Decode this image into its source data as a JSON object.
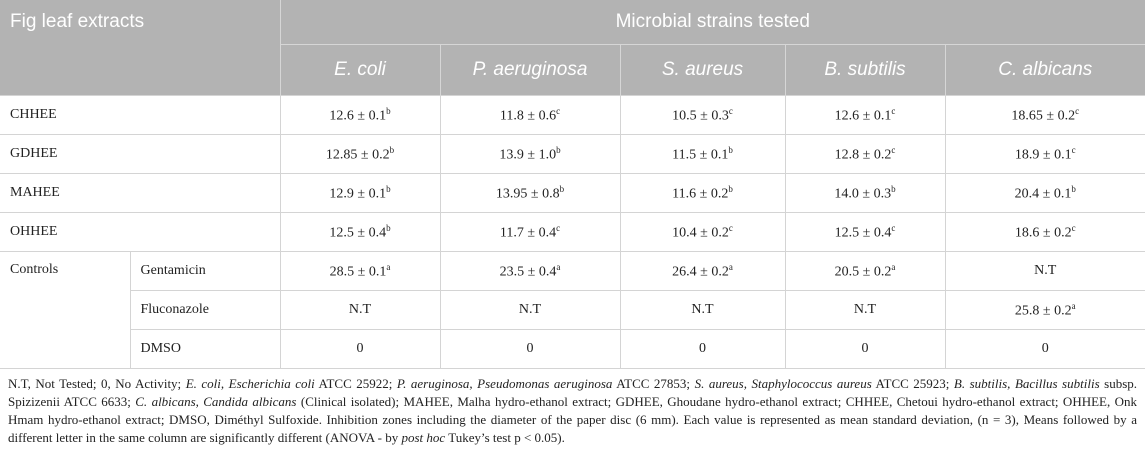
{
  "table": {
    "header": {
      "row_label": "Fig leaf extracts",
      "group": "Microbial strains tested",
      "columns": [
        "E. coli",
        "P. aeruginosa",
        "S. aureus",
        "B. subtilis",
        "C. albicans"
      ]
    },
    "rows": [
      {
        "label": "CHHEE",
        "cells": [
          {
            "text": "12.6 ± 0.1",
            "sup": "b"
          },
          {
            "text": "11.8 ± 0.6",
            "sup": "c"
          },
          {
            "text": "10.5 ± 0.3",
            "sup": "c"
          },
          {
            "text": "12.6 ± 0.1",
            "sup": "c"
          },
          {
            "text": "18.65 ± 0.2",
            "sup": "c"
          }
        ]
      },
      {
        "label": "GDHEE",
        "cells": [
          {
            "text": "12.85 ± 0.2",
            "sup": "b"
          },
          {
            "text": "13.9 ± 1.0",
            "sup": "b"
          },
          {
            "text": "11.5 ± 0.1",
            "sup": "b"
          },
          {
            "text": "12.8 ± 0.2",
            "sup": "c"
          },
          {
            "text": "18.9 ± 0.1",
            "sup": "c"
          }
        ]
      },
      {
        "label": "MAHEE",
        "cells": [
          {
            "text": "12.9 ± 0.1",
            "sup": "b"
          },
          {
            "text": "13.95 ± 0.8",
            "sup": "b"
          },
          {
            "text": "11.6 ± 0.2",
            "sup": "b"
          },
          {
            "text": "14.0 ± 0.3",
            "sup": "b"
          },
          {
            "text": "20.4 ± 0.1",
            "sup": "b"
          }
        ]
      },
      {
        "label": "OHHEE",
        "cells": [
          {
            "text": "12.5 ± 0.4",
            "sup": "b"
          },
          {
            "text": "11.7 ± 0.4",
            "sup": "c"
          },
          {
            "text": "10.4 ± 0.2",
            "sup": "c"
          },
          {
            "text": "12.5 ± 0.4",
            "sup": "c"
          },
          {
            "text": "18.6 ± 0.2",
            "sup": "c"
          }
        ]
      }
    ],
    "controls": {
      "label": "Controls",
      "rows": [
        {
          "label": "Gentamicin",
          "cells": [
            {
              "text": "28.5 ± 0.1",
              "sup": "a"
            },
            {
              "text": "23.5 ± 0.4",
              "sup": "a"
            },
            {
              "text": "26.4 ± 0.2",
              "sup": "a"
            },
            {
              "text": "20.5 ± 0.2",
              "sup": "a"
            },
            {
              "text": "N.T"
            }
          ]
        },
        {
          "label": "Fluconazole",
          "cells": [
            {
              "text": "N.T"
            },
            {
              "text": "N.T"
            },
            {
              "text": "N.T"
            },
            {
              "text": "N.T"
            },
            {
              "text": "25.8 ± 0.2",
              "sup": "a"
            }
          ]
        },
        {
          "label": "DMSO",
          "cells": [
            {
              "text": "0"
            },
            {
              "text": "0"
            },
            {
              "text": "0"
            },
            {
              "text": "0"
            },
            {
              "text": "0"
            }
          ]
        }
      ]
    }
  },
  "footnote": [
    {
      "text": "N.T, Not Tested; 0, No Activity; "
    },
    {
      "text": "E. coli, Escherichia coli",
      "italic": true
    },
    {
      "text": " ATCC 25922; "
    },
    {
      "text": "P. aeruginosa, Pseudomonas aeruginosa",
      "italic": true
    },
    {
      "text": " ATCC 27853; "
    },
    {
      "text": "S. aureus, Staphylococcus aureus",
      "italic": true
    },
    {
      "text": " ATCC 25923; "
    },
    {
      "text": "B. subtilis, Bacillus subtilis",
      "italic": true
    },
    {
      "text": " subsp. Spizizenii ATCC 6633; "
    },
    {
      "text": "C. albicans, Candida albicans",
      "italic": true
    },
    {
      "text": " (Clinical isolated); MAHEE, Malha hydro-ethanol extract; GDHEE, Ghoudane hydro-ethanol extract; CHHEE, Chetoui hydro-ethanol extract; OHHEE, Onk Hmam hydro-ethanol extract; DMSO, Diméthyl Sulfoxide. Inhibition zones including the diameter of the paper disc (6 mm). Each value is represented as mean standard deviation, (n = 3), Means followed by a different letter in the same column are significantly different (ANOVA - by "
    },
    {
      "text": "post hoc",
      "italic": true
    },
    {
      "text": " Tukey’s test p < 0.05)."
    }
  ]
}
